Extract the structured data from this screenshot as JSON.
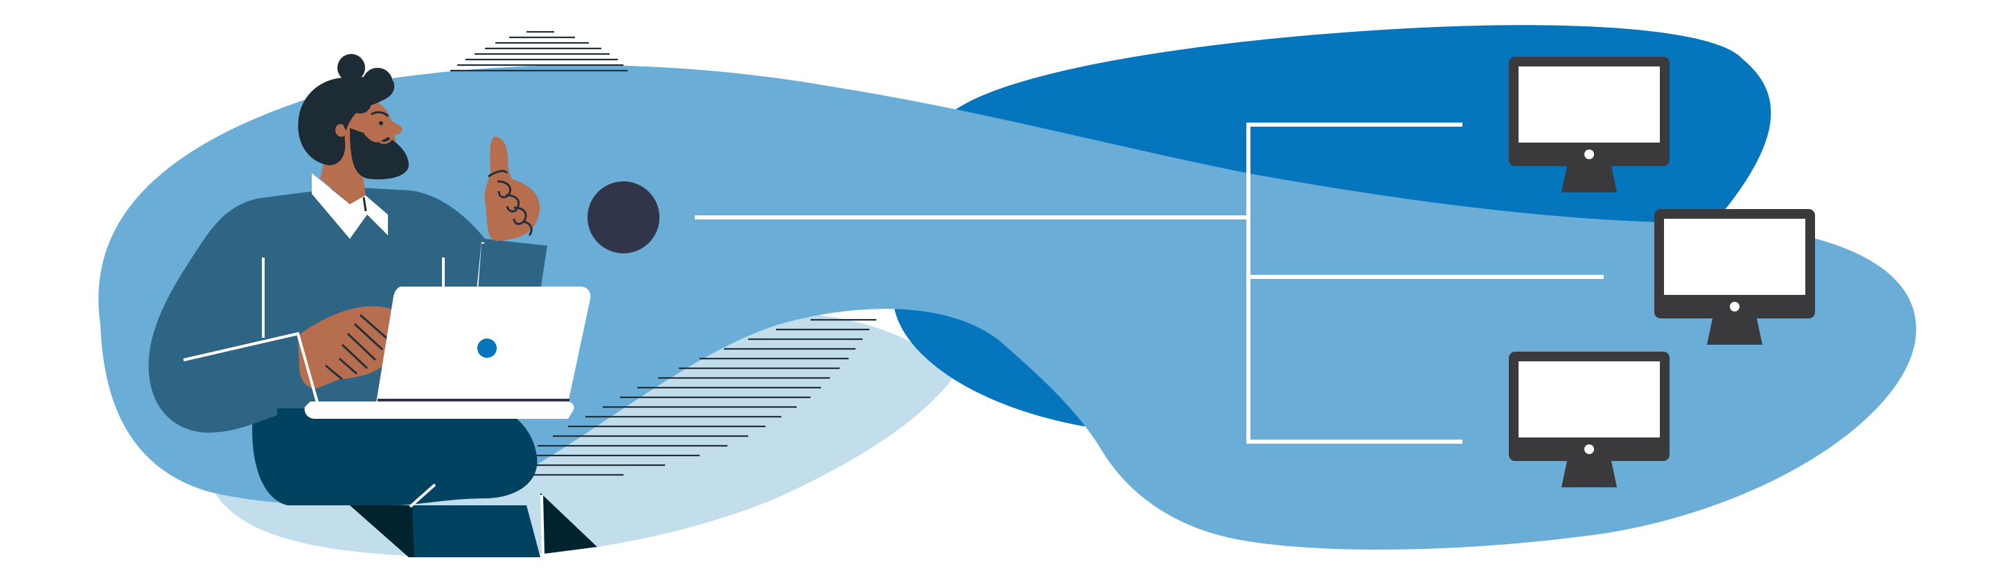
{
  "illustration": {
    "subject": "person-with-laptop-connected-to-network-of-monitors",
    "monitor_count": 3,
    "colors": {
      "background": "#ffffff",
      "blob_light": "#6aaed8",
      "blob_dark": "#0576be",
      "blob_pale": "#c2deec",
      "connector_line": "#ffffff",
      "node_dot": "#313549",
      "monitor_body": "#3a3a3c",
      "monitor_screen": "#ffffff",
      "sweater": "#2e6585",
      "pants": "#00425f",
      "shoe": "#00242f",
      "skin": "#b66e4f",
      "hair": "#1d2b34",
      "laptop": "#ffffff",
      "laptop_logo": "#0576be",
      "hatch": "#22303c"
    },
    "icons": [
      "person-icon",
      "laptop-icon",
      "network-node-icon",
      "desktop-monitor-icon"
    ]
  }
}
